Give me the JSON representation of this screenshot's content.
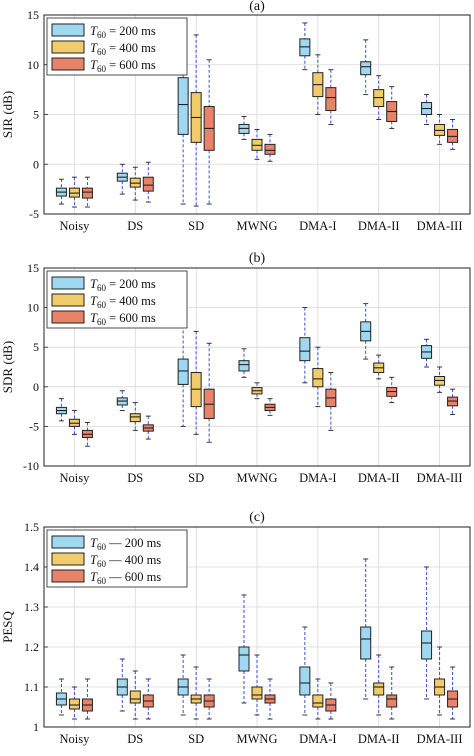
{
  "colors": {
    "s200": "#9fd8f0",
    "s400": "#f2cc6b",
    "s600": "#e8836a",
    "edge": "#222222",
    "whisker": "#3a4fd6",
    "grid": "#d8d8d8",
    "bg": "#ffffff"
  },
  "chart_data": [
    {
      "type": "box",
      "title": "(a)",
      "ylabel": "SIR (dB)",
      "ylim": [
        -5,
        15
      ],
      "yticks": [
        "-5",
        "0",
        "5",
        "10",
        "15"
      ],
      "ytick_values": [
        -5,
        0,
        5,
        10,
        15
      ],
      "grid": true,
      "legend_position": "top-left",
      "categories": [
        "Noisy",
        "DS",
        "SD",
        "MWNG",
        "DMA-I",
        "DMA-II",
        "DMA-III"
      ],
      "series": [
        {
          "name": "T60 = 200 ms",
          "legend_sym": "=",
          "boxes": [
            {
              "min": -4.0,
              "q1": -3.2,
              "med": -2.8,
              "q3": -2.4,
              "max": -1.5
            },
            {
              "min": -3.0,
              "q1": -1.7,
              "med": -1.3,
              "q3": -0.9,
              "max": 0.0
            },
            {
              "min": -4.0,
              "q1": 3.0,
              "med": 6.0,
              "q3": 8.7,
              "max": 14.5
            },
            {
              "min": 2.5,
              "q1": 3.1,
              "med": 3.6,
              "q3": 4.0,
              "max": 4.8
            },
            {
              "min": 9.5,
              "q1": 10.9,
              "med": 11.8,
              "q3": 12.6,
              "max": 14.2
            },
            {
              "min": 7.0,
              "q1": 9.0,
              "med": 9.8,
              "q3": 10.3,
              "max": 12.5
            },
            {
              "min": 4.0,
              "q1": 5.0,
              "med": 5.6,
              "q3": 6.2,
              "max": 7.0
            }
          ]
        },
        {
          "name": "T60 = 400 ms",
          "legend_sym": "=",
          "boxes": [
            {
              "min": -4.3,
              "q1": -3.3,
              "med": -2.9,
              "q3": -2.4,
              "max": -1.3
            },
            {
              "min": -3.6,
              "q1": -2.3,
              "med": -1.9,
              "q3": -1.4,
              "max": -0.3
            },
            {
              "min": -4.2,
              "q1": 2.2,
              "med": 4.7,
              "q3": 7.2,
              "max": 13.0
            },
            {
              "min": 0.5,
              "q1": 1.4,
              "med": 1.9,
              "q3": 2.5,
              "max": 3.5
            },
            {
              "min": 5.0,
              "q1": 6.8,
              "med": 8.0,
              "q3": 9.2,
              "max": 11.0
            },
            {
              "min": 4.5,
              "q1": 5.8,
              "med": 6.7,
              "q3": 7.5,
              "max": 8.9
            },
            {
              "min": 2.0,
              "q1": 2.9,
              "med": 3.4,
              "q3": 4.0,
              "max": 5.0
            }
          ]
        },
        {
          "name": "T60 = 600 ms",
          "legend_sym": "=",
          "boxes": [
            {
              "min": -4.3,
              "q1": -3.4,
              "med": -2.8,
              "q3": -2.4,
              "max": -1.3
            },
            {
              "min": -3.8,
              "q1": -2.7,
              "med": -2.1,
              "q3": -1.3,
              "max": 0.2
            },
            {
              "min": -4.0,
              "q1": 1.4,
              "med": 3.6,
              "q3": 5.8,
              "max": 10.5
            },
            {
              "min": 0.3,
              "q1": 1.0,
              "med": 1.4,
              "q3": 2.0,
              "max": 3.0
            },
            {
              "min": 4.0,
              "q1": 5.4,
              "med": 6.7,
              "q3": 7.7,
              "max": 9.5
            },
            {
              "min": 3.6,
              "q1": 4.3,
              "med": 5.3,
              "q3": 6.3,
              "max": 7.8
            },
            {
              "min": 1.5,
              "q1": 2.2,
              "med": 2.8,
              "q3": 3.5,
              "max": 4.5
            }
          ]
        }
      ]
    },
    {
      "type": "box",
      "title": "(b)",
      "ylabel": "SDR (dB)",
      "ylim": [
        -10,
        15
      ],
      "yticks": [
        "-10",
        "-5",
        "0",
        "5",
        "10",
        "15"
      ],
      "ytick_values": [
        -10,
        -5,
        0,
        5,
        10,
        15
      ],
      "grid": true,
      "legend_position": "top-left",
      "categories": [
        "Noisy",
        "DS",
        "SD",
        "MWNG",
        "DMA-I",
        "DMA-II",
        "DMA-III"
      ],
      "series": [
        {
          "name": "T60 = 200 ms",
          "legend_sym": "=",
          "boxes": [
            {
              "min": -4.3,
              "q1": -3.4,
              "med": -3.0,
              "q3": -2.6,
              "max": -1.5
            },
            {
              "min": -3.0,
              "q1": -2.3,
              "med": -1.8,
              "q3": -1.4,
              "max": -0.5
            },
            {
              "min": -5.0,
              "q1": 0.3,
              "med": 2.0,
              "q3": 3.5,
              "max": 9.0
            },
            {
              "min": 1.2,
              "q1": 2.0,
              "med": 2.8,
              "q3": 3.3,
              "max": 4.8
            },
            {
              "min": 0.5,
              "q1": 3.3,
              "med": 4.5,
              "q3": 6.2,
              "max": 10.0
            },
            {
              "min": 3.5,
              "q1": 5.8,
              "med": 7.0,
              "q3": 8.2,
              "max": 10.5
            },
            {
              "min": 2.5,
              "q1": 3.6,
              "med": 4.4,
              "q3": 5.2,
              "max": 6.0
            }
          ]
        },
        {
          "name": "T60 = 400 ms",
          "legend_sym": "=",
          "boxes": [
            {
              "min": -6.0,
              "q1": -5.0,
              "med": -4.6,
              "q3": -4.1,
              "max": -3.0
            },
            {
              "min": -5.5,
              "q1": -4.4,
              "med": -3.8,
              "q3": -3.4,
              "max": -2.0
            },
            {
              "min": -6.0,
              "q1": -2.5,
              "med": -0.3,
              "q3": 1.8,
              "max": 7.0
            },
            {
              "min": -1.5,
              "q1": -0.9,
              "med": -0.5,
              "q3": -0.1,
              "max": 0.5
            },
            {
              "min": -2.5,
              "q1": 0.0,
              "med": 1.0,
              "q3": 2.3,
              "max": 5.0
            },
            {
              "min": 1.0,
              "q1": 1.8,
              "med": 2.4,
              "q3": 3.0,
              "max": 4.0
            },
            {
              "min": -0.7,
              "q1": 0.2,
              "med": 0.8,
              "q3": 1.3,
              "max": 2.5
            }
          ]
        },
        {
          "name": "T60 = 600 ms",
          "legend_sym": "=",
          "boxes": [
            {
              "min": -7.5,
              "q1": -6.4,
              "med": -6.0,
              "q3": -5.5,
              "max": -4.5
            },
            {
              "min": -6.6,
              "q1": -5.6,
              "med": -5.2,
              "q3": -4.8,
              "max": -3.7
            },
            {
              "min": -7.0,
              "q1": -4.0,
              "med": -2.2,
              "q3": -0.3,
              "max": 5.5
            },
            {
              "min": -3.6,
              "q1": -3.0,
              "med": -2.6,
              "q3": -2.2,
              "max": -1.5
            },
            {
              "min": -5.5,
              "q1": -2.5,
              "med": -1.4,
              "q3": -0.3,
              "max": 1.8
            },
            {
              "min": -2.0,
              "q1": -1.2,
              "med": -0.6,
              "q3": -0.1,
              "max": 1.2
            },
            {
              "min": -3.5,
              "q1": -2.4,
              "med": -1.8,
              "q3": -1.3,
              "max": -0.3
            }
          ]
        }
      ]
    },
    {
      "type": "box",
      "title": "(c)",
      "ylabel": "PESQ",
      "ylim": [
        1.0,
        1.5
      ],
      "yticks": [
        "1",
        "1.1",
        "1.2",
        "1.3",
        "1.4",
        "1.5"
      ],
      "ytick_values": [
        1.0,
        1.1,
        1.2,
        1.3,
        1.4,
        1.5
      ],
      "grid": true,
      "legend_position": "top-left",
      "categories": [
        "Noisy",
        "DS",
        "SD",
        "MWNG",
        "DMA-I",
        "DMA-II",
        "DMA-III"
      ],
      "series": [
        {
          "name": "T60 = 200 ms",
          "legend_sym": "—",
          "boxes": [
            {
              "min": 1.03,
              "q1": 1.055,
              "med": 1.07,
              "q3": 1.085,
              "max": 1.12
            },
            {
              "min": 1.04,
              "q1": 1.08,
              "med": 1.1,
              "q3": 1.12,
              "max": 1.17
            },
            {
              "min": 1.03,
              "q1": 1.08,
              "med": 1.1,
              "q3": 1.12,
              "max": 1.18
            },
            {
              "min": 1.06,
              "q1": 1.14,
              "med": 1.18,
              "q3": 1.2,
              "max": 1.33
            },
            {
              "min": 1.03,
              "q1": 1.08,
              "med": 1.11,
              "q3": 1.15,
              "max": 1.25
            },
            {
              "min": 1.07,
              "q1": 1.17,
              "med": 1.22,
              "q3": 1.25,
              "max": 1.42
            },
            {
              "min": 1.07,
              "q1": 1.17,
              "med": 1.21,
              "q3": 1.24,
              "max": 1.4
            }
          ]
        },
        {
          "name": "T60 = 400 ms",
          "legend_sym": "—",
          "boxes": [
            {
              "min": 1.02,
              "q1": 1.045,
              "med": 1.055,
              "q3": 1.07,
              "max": 1.1
            },
            {
              "min": 1.02,
              "q1": 1.06,
              "med": 1.07,
              "q3": 1.09,
              "max": 1.14
            },
            {
              "min": 1.02,
              "q1": 1.06,
              "med": 1.07,
              "q3": 1.08,
              "max": 1.15
            },
            {
              "min": 1.03,
              "q1": 1.07,
              "med": 1.08,
              "q3": 1.1,
              "max": 1.18
            },
            {
              "min": 1.02,
              "q1": 1.05,
              "med": 1.06,
              "q3": 1.08,
              "max": 1.12
            },
            {
              "min": 1.03,
              "q1": 1.08,
              "med": 1.1,
              "q3": 1.11,
              "max": 1.18
            },
            {
              "min": 1.03,
              "q1": 1.08,
              "med": 1.1,
              "q3": 1.12,
              "max": 1.2
            }
          ]
        },
        {
          "name": "T60 = 600 ms",
          "legend_sym": "—",
          "boxes": [
            {
              "min": 1.02,
              "q1": 1.04,
              "med": 1.055,
              "q3": 1.07,
              "max": 1.12
            },
            {
              "min": 1.02,
              "q1": 1.05,
              "med": 1.065,
              "q3": 1.08,
              "max": 1.12
            },
            {
              "min": 1.02,
              "q1": 1.05,
              "med": 1.065,
              "q3": 1.08,
              "max": 1.12
            },
            {
              "min": 1.02,
              "q1": 1.06,
              "med": 1.07,
              "q3": 1.08,
              "max": 1.12
            },
            {
              "min": 1.02,
              "q1": 1.04,
              "med": 1.055,
              "q3": 1.07,
              "max": 1.11
            },
            {
              "min": 1.02,
              "q1": 1.05,
              "med": 1.07,
              "q3": 1.08,
              "max": 1.15
            },
            {
              "min": 1.02,
              "q1": 1.05,
              "med": 1.07,
              "q3": 1.09,
              "max": 1.15
            }
          ]
        }
      ]
    }
  ]
}
